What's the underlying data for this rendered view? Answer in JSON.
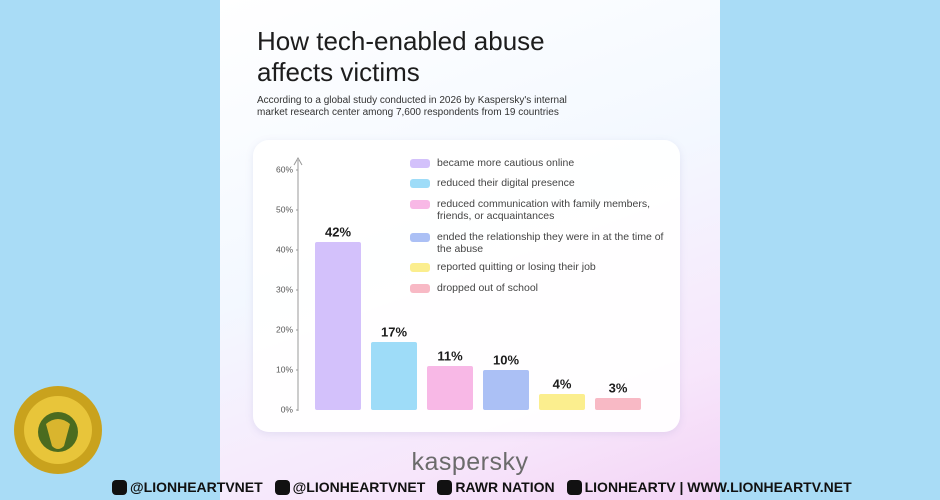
{
  "chart_data": {
    "type": "bar",
    "title": "How tech-enabled abuse affects victims",
    "subtitle": "According to a global study conducted in 2026 by Kaspersky's internal market research center among 7,600 respondents from 19 countries",
    "categories": [
      "became more cautious online",
      "reduced their digital presence",
      "reduced communication with family members, friends, or acquaintances",
      "ended the relationship they were in at the time of the abuse",
      "reported quitting or losing their job",
      "dropped out of school"
    ],
    "values": [
      42,
      17,
      11,
      10,
      4,
      3
    ],
    "value_labels": [
      "42%",
      "17%",
      "11%",
      "10%",
      "4%",
      "3%"
    ],
    "colors": [
      "#d3c1fb",
      "#9edcf8",
      "#f8b8e6",
      "#abc0f5",
      "#fbee8e",
      "#f8b9c5"
    ],
    "ylim": [
      0,
      60
    ],
    "yticks": [
      {
        "value": 0,
        "label": "0%"
      },
      {
        "value": 10,
        "label": "10%"
      },
      {
        "value": 20,
        "label": "20%"
      },
      {
        "value": 30,
        "label": "30%"
      },
      {
        "value": 40,
        "label": "40%"
      },
      {
        "value": 50,
        "label": "50%"
      },
      {
        "value": 60,
        "label": "60%"
      }
    ],
    "grid": false
  },
  "brand": "kaspersky",
  "footer": [
    "@LIONHEARTVNET",
    "@LIONHEARTVNET",
    "RAWR NATION",
    "LIONHEARTV | WWW.LIONHEARTV.NET"
  ]
}
